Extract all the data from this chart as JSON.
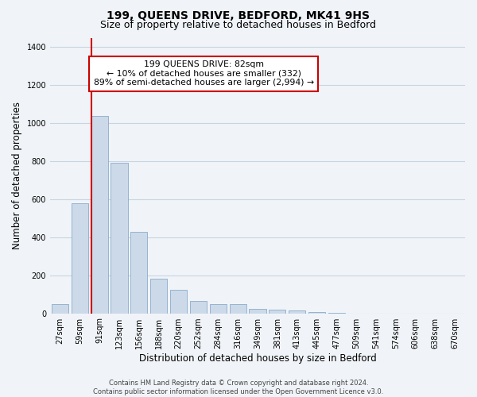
{
  "title": "199, QUEENS DRIVE, BEDFORD, MK41 9HS",
  "subtitle": "Size of property relative to detached houses in Bedford",
  "xlabel": "Distribution of detached houses by size in Bedford",
  "ylabel": "Number of detached properties",
  "bar_labels": [
    "27sqm",
    "59sqm",
    "91sqm",
    "123sqm",
    "156sqm",
    "188sqm",
    "220sqm",
    "252sqm",
    "284sqm",
    "316sqm",
    "349sqm",
    "381sqm",
    "413sqm",
    "445sqm",
    "477sqm",
    "509sqm",
    "541sqm",
    "574sqm",
    "606sqm",
    "638sqm",
    "670sqm"
  ],
  "bar_values": [
    50,
    580,
    1040,
    790,
    430,
    180,
    125,
    65,
    50,
    50,
    25,
    20,
    15,
    5,
    2,
    0,
    0,
    0,
    0,
    0,
    0
  ],
  "bar_color": "#ccd9e8",
  "bar_edge_color": "#8aabcc",
  "vline_x": 2.0,
  "vline_color": "#cc0000",
  "annotation_title": "199 QUEENS DRIVE: 82sqm",
  "annotation_line1": "← 10% of detached houses are smaller (332)",
  "annotation_line2": "89% of semi-detached houses are larger (2,994) →",
  "ylim": [
    0,
    1450
  ],
  "yticks": [
    0,
    200,
    400,
    600,
    800,
    1000,
    1200,
    1400
  ],
  "footer_line1": "Contains HM Land Registry data © Crown copyright and database right 2024.",
  "footer_line2": "Contains public sector information licensed under the Open Government Licence v3.0.",
  "bg_color": "#f0f4f8",
  "grid_color": "#c8d4e0",
  "title_fontsize": 10,
  "subtitle_fontsize": 9,
  "axis_label_fontsize": 8.5,
  "tick_fontsize": 7,
  "footer_fontsize": 6,
  "annot_fontsize": 7.8
}
